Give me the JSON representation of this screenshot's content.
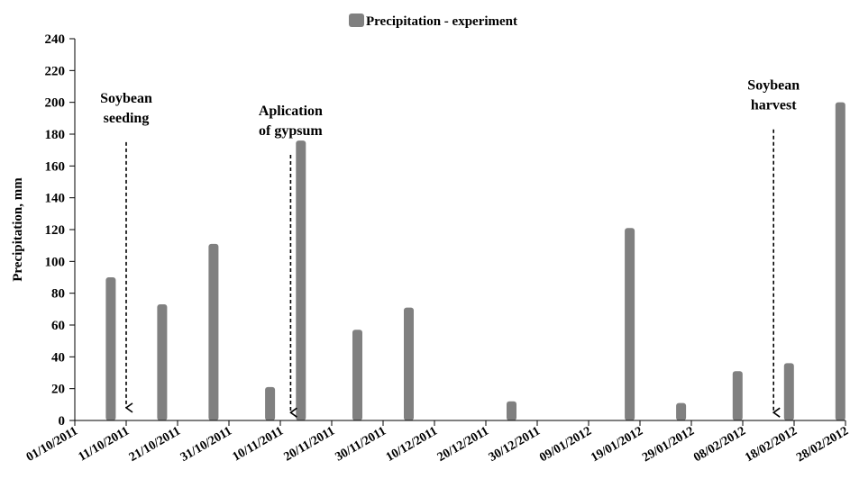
{
  "chart_data": {
    "type": "bar",
    "legend": {
      "label": "Precipitation - experiment",
      "position": "top-center",
      "color": "#808080"
    },
    "ylabel": "Precipitation, mm",
    "xlabel": "",
    "ylim": [
      0,
      240
    ],
    "yticks": [
      0,
      20,
      40,
      60,
      80,
      100,
      120,
      140,
      160,
      180,
      200,
      220,
      240
    ],
    "xlim": [
      "2011-10-01",
      "2012-02-28"
    ],
    "xticks": [
      "01/10/2011",
      "11/10/2011",
      "21/10/2011",
      "31/10/2011",
      "10/11/2011",
      "20/11/2011",
      "30/11/2011",
      "10/12/2011",
      "20/12/2011",
      "30/12/2011",
      "09/01/2012",
      "19/01/2012",
      "29/01/2012",
      "08/02/2012",
      "18/02/2012",
      "28/02/2012"
    ],
    "grid": false,
    "series": [
      {
        "name": "Precipitation - experiment",
        "color": "#808080",
        "points": [
          {
            "date": "2011-10-08",
            "value": 90
          },
          {
            "date": "2011-10-18",
            "value": 73
          },
          {
            "date": "2011-10-28",
            "value": 111
          },
          {
            "date": "2011-11-08",
            "value": 21
          },
          {
            "date": "2011-11-14",
            "value": 176
          },
          {
            "date": "2011-11-25",
            "value": 57
          },
          {
            "date": "2011-12-05",
            "value": 71
          },
          {
            "date": "2011-12-25",
            "value": 12
          },
          {
            "date": "2012-01-17",
            "value": 121
          },
          {
            "date": "2012-01-27",
            "value": 11
          },
          {
            "date": "2012-02-07",
            "value": 31
          },
          {
            "date": "2012-02-17",
            "value": 36
          },
          {
            "date": "2012-02-27",
            "value": 200
          }
        ]
      }
    ],
    "annotations": [
      {
        "lines": [
          "Soybean",
          "seeding"
        ],
        "date": "2011-10-11",
        "arrow_from": 175,
        "arrow_to": 8
      },
      {
        "lines": [
          "Aplication",
          "of gypsum"
        ],
        "date": "2011-11-12",
        "arrow_from": 167,
        "arrow_to": 5
      },
      {
        "lines": [
          "Soybean",
          "harvest"
        ],
        "date": "2012-02-14",
        "arrow_from": 183,
        "arrow_to": 5
      }
    ]
  }
}
